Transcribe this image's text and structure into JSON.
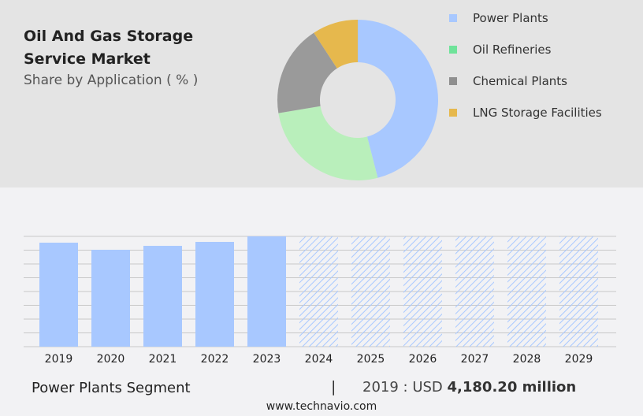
{
  "header": {
    "title": "Oil And Gas Storage Service Market",
    "subtitle": "Share by Application ( % )"
  },
  "chart_data": [
    {
      "type": "pie",
      "donut": true,
      "title": "Oil And Gas Storage Service Market",
      "subtitle": "Share by Application ( % )",
      "legend_position": "right",
      "slices": [
        {
          "name": "Power Plants",
          "value": 46,
          "color": "#a8c8ff",
          "legend_color": "#a8c8ff"
        },
        {
          "name": "Oil Refineries",
          "value": 26.4,
          "color": "#b9efbb",
          "legend_color": "#6fe39a"
        },
        {
          "name": "Chemical Plants",
          "value": 18.4,
          "color": "#9a9a9a",
          "legend_color": "#8f8f8f"
        },
        {
          "name": "LNG Storage Facilities",
          "value": 9.2,
          "color": "#e6b84d",
          "legend_color": "#e6b84d"
        }
      ]
    },
    {
      "type": "bar",
      "categories": [
        "2019",
        "2020",
        "2021",
        "2022",
        "2023",
        "2024",
        "2025",
        "2026",
        "2027",
        "2028",
        "2029"
      ],
      "values": [
        4180.2,
        3896,
        4053,
        4212,
        4434,
        null,
        null,
        null,
        null,
        null,
        null
      ],
      "forecast_categories": [
        "2024",
        "2025",
        "2026",
        "2027",
        "2028",
        "2029"
      ],
      "ylim": [
        0,
        4434
      ],
      "grid": true,
      "color": "#a8c8ff",
      "xlabel": "",
      "ylabel": ""
    }
  ],
  "footer": {
    "segment": "Power Plants Segment",
    "separator": "|",
    "year_label": "2019 : USD",
    "value": "4,180.20 million",
    "url": "www.technavio.com"
  }
}
